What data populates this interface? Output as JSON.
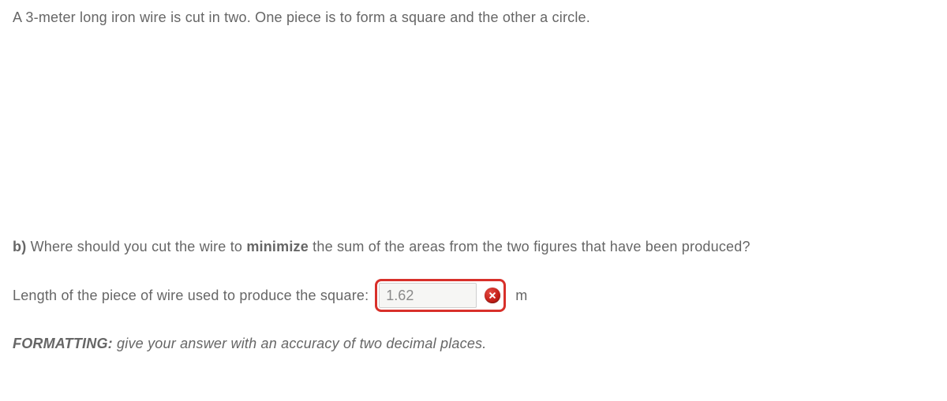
{
  "problem": {
    "statement_prefix": "A ",
    "length_value": "3",
    "statement_suffix": "-meter long iron wire is cut in two. One piece is to form a square and the other a circle."
  },
  "partB": {
    "label": "b)",
    "text_before": " Where should you cut the wire to ",
    "emph": "minimize",
    "text_after": " the sum of the areas from the two figures that have been produced?"
  },
  "answer": {
    "prompt": "Length of the piece of wire used to produce the square:",
    "value": "1.62",
    "unit": "m",
    "status": "incorrect"
  },
  "formatting": {
    "label": "FORMATTING:",
    "note": "  give your answer with an accuracy of two decimal places."
  },
  "colors": {
    "text": "#666666",
    "error_border": "#d8302a",
    "input_bg": "#f6f6f4",
    "input_border": "#cfcfcf",
    "badge_gradient": [
      "#e24a42",
      "#c6211a",
      "#8f0f0a"
    ]
  }
}
